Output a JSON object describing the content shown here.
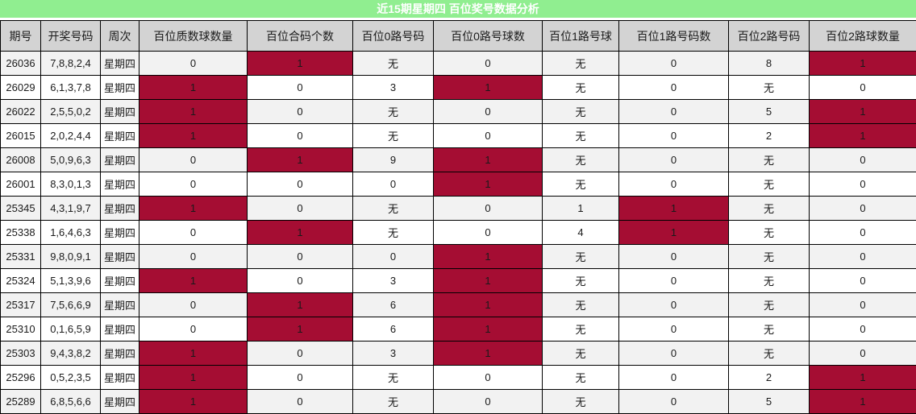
{
  "title": "近15期星期四 百位奖号数据分析",
  "colors": {
    "title_bg": "#90EE90",
    "title_text": "#FFFFFF",
    "header_bg": "#D3D3D3",
    "row_odd_bg": "#F2F2F2",
    "row_even_bg": "#FFFFFF",
    "highlight_bg": "#A50D33",
    "border": "#000000",
    "text": "#1A1A1A"
  },
  "table": {
    "headers": [
      "期号",
      "开奖号码",
      "周次",
      "百位质数球数量",
      "百位合码个数",
      "百位0路号码",
      "百位0路号球数",
      "百位1路号球",
      "百位1路号码数",
      "百位2路号码",
      "百位2路球数量"
    ],
    "none_label": "无",
    "rows": [
      {
        "cells": [
          {
            "v": "26036",
            "hl": false
          },
          {
            "v": "7,8,8,2,4",
            "hl": false
          },
          {
            "v": "星期四",
            "hl": false
          },
          {
            "v": "0",
            "hl": false
          },
          {
            "v": "1",
            "hl": true
          },
          {
            "v": "无",
            "hl": false
          },
          {
            "v": "0",
            "hl": false
          },
          {
            "v": "无",
            "hl": false
          },
          {
            "v": "0",
            "hl": false
          },
          {
            "v": "8",
            "hl": false
          },
          {
            "v": "1",
            "hl": true
          }
        ]
      },
      {
        "cells": [
          {
            "v": "26029",
            "hl": false
          },
          {
            "v": "6,1,3,7,8",
            "hl": false
          },
          {
            "v": "星期四",
            "hl": false
          },
          {
            "v": "1",
            "hl": true
          },
          {
            "v": "0",
            "hl": false
          },
          {
            "v": "3",
            "hl": false
          },
          {
            "v": "1",
            "hl": true
          },
          {
            "v": "无",
            "hl": false
          },
          {
            "v": "0",
            "hl": false
          },
          {
            "v": "无",
            "hl": false
          },
          {
            "v": "0",
            "hl": false
          }
        ]
      },
      {
        "cells": [
          {
            "v": "26022",
            "hl": false
          },
          {
            "v": "2,5,5,0,2",
            "hl": false
          },
          {
            "v": "星期四",
            "hl": false
          },
          {
            "v": "1",
            "hl": true
          },
          {
            "v": "0",
            "hl": false
          },
          {
            "v": "无",
            "hl": false
          },
          {
            "v": "0",
            "hl": false
          },
          {
            "v": "无",
            "hl": false
          },
          {
            "v": "0",
            "hl": false
          },
          {
            "v": "5",
            "hl": false
          },
          {
            "v": "1",
            "hl": true
          }
        ]
      },
      {
        "cells": [
          {
            "v": "26015",
            "hl": false
          },
          {
            "v": "2,0,2,4,4",
            "hl": false
          },
          {
            "v": "星期四",
            "hl": false
          },
          {
            "v": "1",
            "hl": true
          },
          {
            "v": "0",
            "hl": false
          },
          {
            "v": "无",
            "hl": false
          },
          {
            "v": "0",
            "hl": false
          },
          {
            "v": "无",
            "hl": false
          },
          {
            "v": "0",
            "hl": false
          },
          {
            "v": "2",
            "hl": false
          },
          {
            "v": "1",
            "hl": true
          }
        ]
      },
      {
        "cells": [
          {
            "v": "26008",
            "hl": false
          },
          {
            "v": "5,0,9,6,3",
            "hl": false
          },
          {
            "v": "星期四",
            "hl": false
          },
          {
            "v": "0",
            "hl": false
          },
          {
            "v": "1",
            "hl": true
          },
          {
            "v": "9",
            "hl": false
          },
          {
            "v": "1",
            "hl": true
          },
          {
            "v": "无",
            "hl": false
          },
          {
            "v": "0",
            "hl": false
          },
          {
            "v": "无",
            "hl": false
          },
          {
            "v": "0",
            "hl": false
          }
        ]
      },
      {
        "cells": [
          {
            "v": "26001",
            "hl": false
          },
          {
            "v": "8,3,0,1,3",
            "hl": false
          },
          {
            "v": "星期四",
            "hl": false
          },
          {
            "v": "0",
            "hl": false
          },
          {
            "v": "0",
            "hl": false
          },
          {
            "v": "0",
            "hl": false
          },
          {
            "v": "1",
            "hl": true
          },
          {
            "v": "无",
            "hl": false
          },
          {
            "v": "0",
            "hl": false
          },
          {
            "v": "无",
            "hl": false
          },
          {
            "v": "0",
            "hl": false
          }
        ]
      },
      {
        "cells": [
          {
            "v": "25345",
            "hl": false
          },
          {
            "v": "4,3,1,9,7",
            "hl": false
          },
          {
            "v": "星期四",
            "hl": false
          },
          {
            "v": "1",
            "hl": true
          },
          {
            "v": "0",
            "hl": false
          },
          {
            "v": "无",
            "hl": false
          },
          {
            "v": "0",
            "hl": false
          },
          {
            "v": "1",
            "hl": false
          },
          {
            "v": "1",
            "hl": true
          },
          {
            "v": "无",
            "hl": false
          },
          {
            "v": "0",
            "hl": false
          }
        ]
      },
      {
        "cells": [
          {
            "v": "25338",
            "hl": false
          },
          {
            "v": "1,6,4,6,3",
            "hl": false
          },
          {
            "v": "星期四",
            "hl": false
          },
          {
            "v": "0",
            "hl": false
          },
          {
            "v": "1",
            "hl": true
          },
          {
            "v": "无",
            "hl": false
          },
          {
            "v": "0",
            "hl": false
          },
          {
            "v": "4",
            "hl": false
          },
          {
            "v": "1",
            "hl": true
          },
          {
            "v": "无",
            "hl": false
          },
          {
            "v": "0",
            "hl": false
          }
        ]
      },
      {
        "cells": [
          {
            "v": "25331",
            "hl": false
          },
          {
            "v": "9,8,0,9,1",
            "hl": false
          },
          {
            "v": "星期四",
            "hl": false
          },
          {
            "v": "0",
            "hl": false
          },
          {
            "v": "0",
            "hl": false
          },
          {
            "v": "0",
            "hl": false
          },
          {
            "v": "1",
            "hl": true
          },
          {
            "v": "无",
            "hl": false
          },
          {
            "v": "0",
            "hl": false
          },
          {
            "v": "无",
            "hl": false
          },
          {
            "v": "0",
            "hl": false
          }
        ]
      },
      {
        "cells": [
          {
            "v": "25324",
            "hl": false
          },
          {
            "v": "5,1,3,9,6",
            "hl": false
          },
          {
            "v": "星期四",
            "hl": false
          },
          {
            "v": "1",
            "hl": true
          },
          {
            "v": "0",
            "hl": false
          },
          {
            "v": "3",
            "hl": false
          },
          {
            "v": "1",
            "hl": true
          },
          {
            "v": "无",
            "hl": false
          },
          {
            "v": "0",
            "hl": false
          },
          {
            "v": "无",
            "hl": false
          },
          {
            "v": "0",
            "hl": false
          }
        ]
      },
      {
        "cells": [
          {
            "v": "25317",
            "hl": false
          },
          {
            "v": "7,5,6,6,9",
            "hl": false
          },
          {
            "v": "星期四",
            "hl": false
          },
          {
            "v": "0",
            "hl": false
          },
          {
            "v": "1",
            "hl": true
          },
          {
            "v": "6",
            "hl": false
          },
          {
            "v": "1",
            "hl": true
          },
          {
            "v": "无",
            "hl": false
          },
          {
            "v": "0",
            "hl": false
          },
          {
            "v": "无",
            "hl": false
          },
          {
            "v": "0",
            "hl": false
          }
        ]
      },
      {
        "cells": [
          {
            "v": "25310",
            "hl": false
          },
          {
            "v": "0,1,6,5,9",
            "hl": false
          },
          {
            "v": "星期四",
            "hl": false
          },
          {
            "v": "0",
            "hl": false
          },
          {
            "v": "1",
            "hl": true
          },
          {
            "v": "6",
            "hl": false
          },
          {
            "v": "1",
            "hl": true
          },
          {
            "v": "无",
            "hl": false
          },
          {
            "v": "0",
            "hl": false
          },
          {
            "v": "无",
            "hl": false
          },
          {
            "v": "0",
            "hl": false
          }
        ]
      },
      {
        "cells": [
          {
            "v": "25303",
            "hl": false
          },
          {
            "v": "9,4,3,8,2",
            "hl": false
          },
          {
            "v": "星期四",
            "hl": false
          },
          {
            "v": "1",
            "hl": true
          },
          {
            "v": "0",
            "hl": false
          },
          {
            "v": "3",
            "hl": false
          },
          {
            "v": "1",
            "hl": true
          },
          {
            "v": "无",
            "hl": false
          },
          {
            "v": "0",
            "hl": false
          },
          {
            "v": "无",
            "hl": false
          },
          {
            "v": "0",
            "hl": false
          }
        ]
      },
      {
        "cells": [
          {
            "v": "25296",
            "hl": false
          },
          {
            "v": "0,5,2,3,5",
            "hl": false
          },
          {
            "v": "星期四",
            "hl": false
          },
          {
            "v": "1",
            "hl": true
          },
          {
            "v": "0",
            "hl": false
          },
          {
            "v": "无",
            "hl": false
          },
          {
            "v": "0",
            "hl": false
          },
          {
            "v": "无",
            "hl": false
          },
          {
            "v": "0",
            "hl": false
          },
          {
            "v": "2",
            "hl": false
          },
          {
            "v": "1",
            "hl": true
          }
        ]
      },
      {
        "cells": [
          {
            "v": "25289",
            "hl": false
          },
          {
            "v": "6,8,5,6,6",
            "hl": false
          },
          {
            "v": "星期四",
            "hl": false
          },
          {
            "v": "1",
            "hl": true
          },
          {
            "v": "0",
            "hl": false
          },
          {
            "v": "无",
            "hl": false
          },
          {
            "v": "0",
            "hl": false
          },
          {
            "v": "无",
            "hl": false
          },
          {
            "v": "0",
            "hl": false
          },
          {
            "v": "5",
            "hl": false
          },
          {
            "v": "1",
            "hl": true
          }
        ]
      }
    ]
  }
}
